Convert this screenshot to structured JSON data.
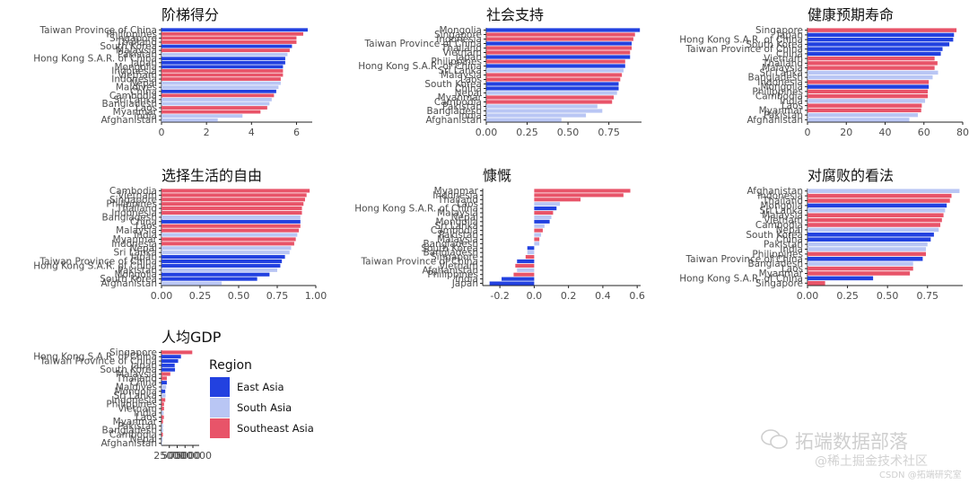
{
  "colors": {
    "East Asia": "#2241e0",
    "South Asia": "#b9c6f4",
    "Southeast Asia": "#e85469"
  },
  "legend": {
    "title": "Region",
    "items": [
      {
        "label": "East Asia",
        "color": "#2241e0"
      },
      {
        "label": "South Asia",
        "color": "#b9c6f4"
      },
      {
        "label": "Southeast Asia",
        "color": "#e85469"
      }
    ]
  },
  "watermark": {
    "main": "拓端数据部落",
    "sub": "@稀土掘金技术社区",
    "small": "CSDN @拓端研究室"
  },
  "chart_data": [
    {
      "type": "bar",
      "orientation": "horizontal",
      "title": "阶梯得分",
      "xlim": [
        0,
        6.7
      ],
      "xticks": [
        0,
        2,
        4,
        6
      ],
      "xtick_labels": [
        "0",
        "2",
        "4",
        "6"
      ],
      "categories": [
        "Taiwan Province of China",
        "Philippines",
        "Singapore",
        "Thailand",
        "South Korea",
        "Malaysia",
        "Pakistan",
        "Hong Kong S.A.R. of China",
        "Japan",
        "Mongolia",
        "Indonesia",
        "Vietnam",
        "Indonesia",
        "Nepal",
        "Maldives",
        "China",
        "Cambodia",
        "Sri Lanka",
        "Bangladesh",
        "Laos",
        "Myanmar",
        "India",
        "Afghanistan"
      ],
      "regions": [
        "East Asia",
        "Southeast Asia",
        "Southeast Asia",
        "Southeast Asia",
        "East Asia",
        "Southeast Asia",
        "South Asia",
        "East Asia",
        "East Asia",
        "East Asia",
        "Southeast Asia",
        "Southeast Asia",
        "Southeast Asia",
        "South Asia",
        "South Asia",
        "East Asia",
        "Southeast Asia",
        "South Asia",
        "South Asia",
        "Southeast Asia",
        "Southeast Asia",
        "South Asia",
        "South Asia"
      ],
      "values": [
        6.5,
        6.3,
        6.0,
        6.0,
        5.8,
        5.7,
        5.6,
        5.5,
        5.5,
        5.4,
        5.4,
        5.4,
        5.3,
        5.3,
        5.2,
        5.1,
        5.0,
        4.9,
        4.8,
        4.7,
        4.4,
        3.6,
        2.5
      ]
    },
    {
      "type": "bar",
      "orientation": "horizontal",
      "title": "社会支持",
      "xlim": [
        0,
        0.95
      ],
      "xticks": [
        0,
        0.25,
        0.5,
        0.75
      ],
      "xtick_labels": [
        "0.00",
        "0.25",
        "0.50",
        "0.75"
      ],
      "categories": [
        "Mongolia",
        "Singapore",
        "Indonesia",
        "Taiwan Province of China",
        "Thailand",
        "Vietnam",
        "Japan",
        "Philippines",
        "Hong Kong S.A.R. of China",
        "Sri Lanka",
        "Malaysia",
        "Laos",
        "South Korea",
        "China",
        "Nepal",
        "Myanmar",
        "Cambodia",
        "Pakistan",
        "Bangladesh",
        "India",
        "Afghanistan"
      ],
      "regions": [
        "East Asia",
        "Southeast Asia",
        "Southeast Asia",
        "East Asia",
        "Southeast Asia",
        "Southeast Asia",
        "East Asia",
        "Southeast Asia",
        "East Asia",
        "South Asia",
        "Southeast Asia",
        "Southeast Asia",
        "East Asia",
        "East Asia",
        "South Asia",
        "Southeast Asia",
        "Southeast Asia",
        "South Asia",
        "South Asia",
        "South Asia",
        "South Asia"
      ],
      "values": [
        0.94,
        0.91,
        0.9,
        0.89,
        0.89,
        0.88,
        0.88,
        0.85,
        0.85,
        0.84,
        0.83,
        0.82,
        0.81,
        0.81,
        0.8,
        0.78,
        0.77,
        0.68,
        0.71,
        0.61,
        0.46
      ]
    },
    {
      "type": "bar",
      "orientation": "horizontal",
      "title": "健康预期寿命",
      "xlim": [
        0,
        80
      ],
      "xticks": [
        0,
        20,
        40,
        60,
        80
      ],
      "xtick_labels": [
        "0",
        "20",
        "40",
        "60",
        "80"
      ],
      "categories": [
        "Singapore",
        "Japan",
        "Hong Kong S.A.R. of China",
        "South Korea",
        "Taiwan Province of China",
        "China",
        "Vietnam",
        "Thailand",
        "Malaysia",
        "Sri Lanka",
        "Bangladesh",
        "Indonesia",
        "Mongolia",
        "Philippines",
        "Cambodia",
        "India",
        "Laos",
        "Myanmar",
        "Pakistan",
        "Afghanistan"
      ],
      "regions": [
        "Southeast Asia",
        "East Asia",
        "East Asia",
        "East Asia",
        "East Asia",
        "East Asia",
        "Southeast Asia",
        "Southeast Asia",
        "Southeast Asia",
        "South Asia",
        "South Asia",
        "Southeast Asia",
        "East Asia",
        "Southeast Asia",
        "Southeast Asia",
        "South Asia",
        "Southeast Asia",
        "Southeast Asia",
        "South Asia",
        "South Asia"
      ],
      "values": [
        76.8,
        75.5,
        75.1,
        73.1,
        69.6,
        68.7,
        65.5,
        67.0,
        65.5,
        67.3,
        64.5,
        62.5,
        62.5,
        62.0,
        62.0,
        60.6,
        58.9,
        58.6,
        56.9,
        52.5
      ]
    },
    {
      "type": "bar",
      "orientation": "horizontal",
      "title": "选择生活的自由",
      "xlim": [
        0,
        1.0
      ],
      "xticks": [
        0,
        0.25,
        0.5,
        0.75,
        1.0
      ],
      "xtick_labels": [
        "0.00",
        "0.25",
        "0.50",
        "0.75",
        "1.00"
      ],
      "categories": [
        "Cambodia",
        "Vietnam",
        "Singapore",
        "Philippines",
        "Thailand",
        "Indonesia",
        "Bangladesh",
        "China",
        "Laos",
        "Malaysia",
        "India",
        "Myanmar",
        "Indonesia",
        "Nepal",
        "Sri Lanka",
        "Japan",
        "Taiwan Province of China",
        "Hong Kong S.A.R. of China",
        "Pakistan",
        "Mongolia",
        "South Korea",
        "Afghanistan"
      ],
      "regions": [
        "Southeast Asia",
        "Southeast Asia",
        "Southeast Asia",
        "Southeast Asia",
        "Southeast Asia",
        "Southeast Asia",
        "South Asia",
        "East Asia",
        "Southeast Asia",
        "Southeast Asia",
        "South Asia",
        "Southeast Asia",
        "Southeast Asia",
        "South Asia",
        "South Asia",
        "East Asia",
        "East Asia",
        "East Asia",
        "South Asia",
        "East Asia",
        "East Asia",
        "South Asia"
      ],
      "values": [
        0.96,
        0.94,
        0.93,
        0.92,
        0.91,
        0.91,
        0.9,
        0.9,
        0.9,
        0.89,
        0.88,
        0.87,
        0.86,
        0.84,
        0.83,
        0.8,
        0.78,
        0.77,
        0.75,
        0.7,
        0.62,
        0.39
      ]
    },
    {
      "type": "bar",
      "orientation": "horizontal",
      "title": "慷慨",
      "xlim": [
        -0.3,
        0.62
      ],
      "xticks": [
        -0.2,
        0,
        0.2,
        0.4,
        0.6
      ],
      "xtick_labels": [
        "-0.2",
        "0.0",
        "0.2",
        "0.4",
        "0.6"
      ],
      "categories": [
        "Myanmar",
        "Indonesia",
        "Thailand",
        "Laos",
        "Hong Kong S.A.R. of China",
        "Malaysia",
        "Nepal",
        "Mongolia",
        "Sri Lanka",
        "Cambodia",
        "Pakistan",
        "Malaysia",
        "Bangladesh",
        "South Korea",
        "Bangladesh",
        "Singapore",
        "Taiwan Province of China",
        "Vietnam",
        "Afghanistan",
        "Philippines",
        "India",
        "Japan"
      ],
      "regions": [
        "Southeast Asia",
        "Southeast Asia",
        "Southeast Asia",
        "South Asia",
        "East Asia",
        "Southeast Asia",
        "South Asia",
        "East Asia",
        "South Asia",
        "Southeast Asia",
        "South Asia",
        "Southeast Asia",
        "South Asia",
        "East Asia",
        "South Asia",
        "Southeast Asia",
        "East Asia",
        "Southeast Asia",
        "South Asia",
        "Southeast Asia",
        "East Asia",
        "East Asia"
      ],
      "values": [
        0.56,
        0.52,
        0.27,
        0.15,
        0.13,
        0.11,
        0.1,
        0.09,
        0.06,
        0.05,
        0.04,
        0.03,
        0.03,
        -0.04,
        -0.04,
        -0.05,
        -0.1,
        -0.11,
        -0.1,
        -0.12,
        -0.19,
        -0.26
      ]
    },
    {
      "type": "bar",
      "orientation": "horizontal",
      "title": "对腐败的看法",
      "xlim": [
        0,
        0.97
      ],
      "xticks": [
        0,
        0.25,
        0.5,
        0.75
      ],
      "xtick_labels": [
        "0.00",
        "0.25",
        "0.50",
        "0.75"
      ],
      "categories": [
        "Afghanistan",
        "Indonesia",
        "Thailand",
        "Mongolia",
        "Sri Lanka",
        "Malaysia",
        "Vietnam",
        "Cambodia",
        "Nepal",
        "South Korea",
        "China",
        "Pakistan",
        "India",
        "Philippines",
        "Taiwan Province of China",
        "Bangladesh",
        "Laos",
        "Myanmar",
        "Hong Kong S.A.R. of China",
        "Singapore"
      ],
      "regions": [
        "South Asia",
        "Southeast Asia",
        "Southeast Asia",
        "East Asia",
        "South Asia",
        "Southeast Asia",
        "Southeast Asia",
        "Southeast Asia",
        "South Asia",
        "East Asia",
        "East Asia",
        "South Asia",
        "South Asia",
        "Southeast Asia",
        "East Asia",
        "South Asia",
        "Southeast Asia",
        "Southeast Asia",
        "East Asia",
        "Southeast Asia"
      ],
      "values": [
        0.95,
        0.9,
        0.89,
        0.87,
        0.86,
        0.85,
        0.84,
        0.83,
        0.82,
        0.79,
        0.77,
        0.75,
        0.74,
        0.74,
        0.72,
        0.66,
        0.66,
        0.64,
        0.41,
        0.11
      ]
    },
    {
      "type": "bar",
      "orientation": "horizontal",
      "title": "人均GDP",
      "xlim": [
        0,
        120000
      ],
      "xticks": [
        25000,
        50000,
        75000,
        100000
      ],
      "xtick_labels": [
        "25000",
        "50000",
        "75000",
        "100000"
      ],
      "categories": [
        "Singapore",
        "Hong Kong S.A.R. of China",
        "Taiwan Province of China",
        "Japan",
        "South Korea",
        "Malaysia",
        "Thailand",
        "China",
        "Maldives",
        "Mongolia",
        "Sri Lanka",
        "Indonesia",
        "Philippines",
        "Vietnam",
        "India",
        "Laos",
        "Myanmar",
        "Pakistan",
        "Bangladesh",
        "Cambodia",
        "Nepal",
        "Afghanistan"
      ],
      "regions": [
        "Southeast Asia",
        "East Asia",
        "East Asia",
        "East Asia",
        "East Asia",
        "Southeast Asia",
        "Southeast Asia",
        "East Asia",
        "South Asia",
        "East Asia",
        "South Asia",
        "Southeast Asia",
        "Southeast Asia",
        "Southeast Asia",
        "South Asia",
        "Southeast Asia",
        "Southeast Asia",
        "South Asia",
        "South Asia",
        "Southeast Asia",
        "South Asia",
        "South Asia"
      ],
      "values": [
        98000,
        62000,
        53000,
        42000,
        43000,
        28000,
        17000,
        17000,
        15000,
        12000,
        13000,
        12000,
        8000,
        8000,
        6500,
        7500,
        4800,
        4800,
        5000,
        4400,
        3500,
        2000
      ]
    }
  ]
}
